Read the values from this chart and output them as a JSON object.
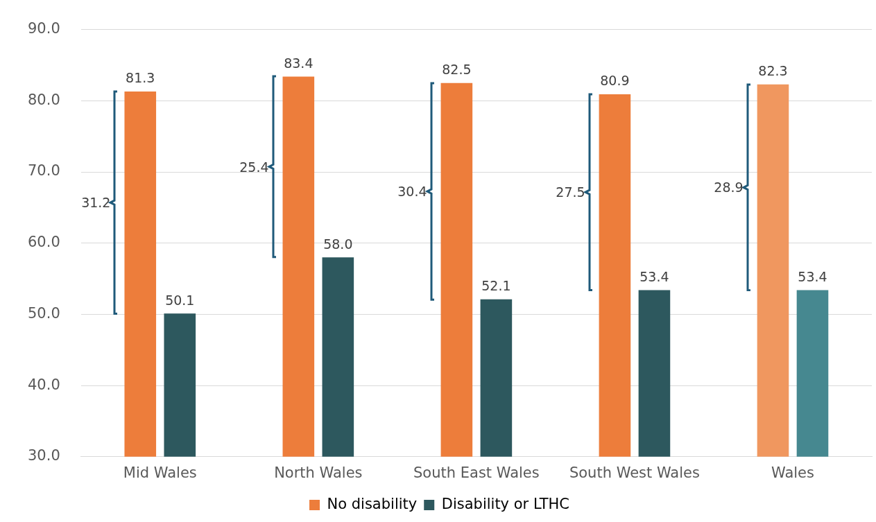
{
  "chart_data": {
    "type": "bar",
    "categories": [
      "Mid Wales",
      "North Wales",
      "South East Wales",
      "South West Wales",
      "Wales"
    ],
    "series": [
      {
        "name": "No disability",
        "color": "#ed7d3b",
        "colors": [
          "#ed7d3b",
          "#ed7d3b",
          "#ed7d3b",
          "#ed7d3b",
          "#f0975f"
        ],
        "values": [
          81.3,
          83.4,
          82.5,
          80.9,
          82.3
        ],
        "value_labels": [
          "81.3",
          "83.4",
          "82.5",
          "80.9",
          "82.3"
        ]
      },
      {
        "name": "Disability or LTHC",
        "color": "#2d585e",
        "colors": [
          "#2d585e",
          "#2d585e",
          "#2d585e",
          "#2d585e",
          "#468890"
        ],
        "values": [
          50.1,
          58.0,
          52.1,
          53.4,
          53.4
        ],
        "value_labels": [
          "50.1",
          "58.0",
          "52.1",
          "53.4",
          "53.4"
        ]
      }
    ],
    "ylim": [
      30,
      90
    ],
    "yticks": [
      {
        "value": 30,
        "label": "30.0"
      },
      {
        "value": 40,
        "label": "40.0"
      },
      {
        "value": 50,
        "label": "50.0"
      },
      {
        "value": 60,
        "label": "60.0"
      },
      {
        "value": 70,
        "label": "70.0"
      },
      {
        "value": 80,
        "label": "80.0"
      },
      {
        "value": 90,
        "label": "90.0"
      }
    ],
    "annotations": [
      "31.2",
      "25.4",
      "30.4",
      "27.5",
      "28.9"
    ],
    "grid": "y",
    "legend": "bottom"
  }
}
